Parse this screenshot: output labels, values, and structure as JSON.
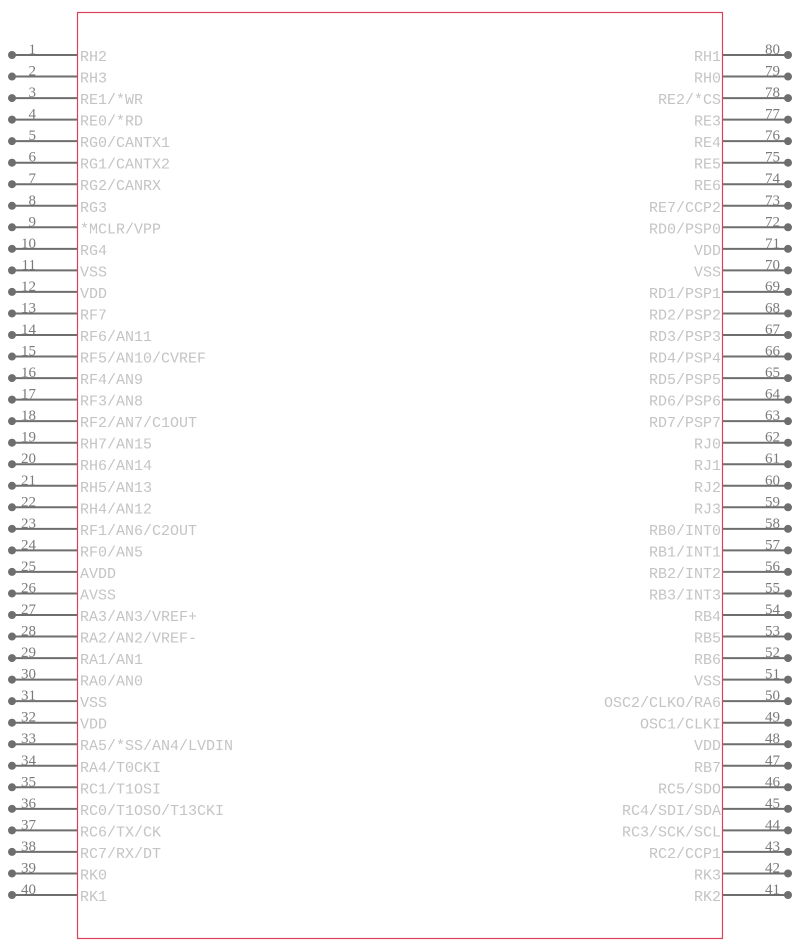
{
  "colors": {
    "body_outline": "#d9415c",
    "pin": "#6e6e6e",
    "pin_label": "#c4c4c4",
    "pin_number": "#7a7a7a"
  },
  "left_pins": [
    {
      "num": "1",
      "name": "RH2"
    },
    {
      "num": "2",
      "name": "RH3"
    },
    {
      "num": "3",
      "name": "RE1/*WR"
    },
    {
      "num": "4",
      "name": "RE0/*RD"
    },
    {
      "num": "5",
      "name": "RG0/CANTX1"
    },
    {
      "num": "6",
      "name": "RG1/CANTX2"
    },
    {
      "num": "7",
      "name": "RG2/CANRX"
    },
    {
      "num": "8",
      "name": "RG3"
    },
    {
      "num": "9",
      "name": "*MCLR/VPP"
    },
    {
      "num": "10",
      "name": "RG4"
    },
    {
      "num": "11",
      "name": "VSS"
    },
    {
      "num": "12",
      "name": "VDD"
    },
    {
      "num": "13",
      "name": "RF7"
    },
    {
      "num": "14",
      "name": "RF6/AN11"
    },
    {
      "num": "15",
      "name": "RF5/AN10/CVREF"
    },
    {
      "num": "16",
      "name": "RF4/AN9"
    },
    {
      "num": "17",
      "name": "RF3/AN8"
    },
    {
      "num": "18",
      "name": "RF2/AN7/C1OUT"
    },
    {
      "num": "19",
      "name": "RH7/AN15"
    },
    {
      "num": "20",
      "name": "RH6/AN14"
    },
    {
      "num": "21",
      "name": "RH5/AN13"
    },
    {
      "num": "22",
      "name": "RH4/AN12"
    },
    {
      "num": "23",
      "name": "RF1/AN6/C2OUT"
    },
    {
      "num": "24",
      "name": "RF0/AN5"
    },
    {
      "num": "25",
      "name": "AVDD"
    },
    {
      "num": "26",
      "name": "AVSS"
    },
    {
      "num": "27",
      "name": "RA3/AN3/VREF+"
    },
    {
      "num": "28",
      "name": "RA2/AN2/VREF-"
    },
    {
      "num": "29",
      "name": "RA1/AN1"
    },
    {
      "num": "30",
      "name": "RA0/AN0"
    },
    {
      "num": "31",
      "name": "VSS"
    },
    {
      "num": "32",
      "name": "VDD"
    },
    {
      "num": "33",
      "name": "RA5/*SS/AN4/LVDIN"
    },
    {
      "num": "34",
      "name": "RA4/T0CKI"
    },
    {
      "num": "35",
      "name": "RC1/T1OSI"
    },
    {
      "num": "36",
      "name": "RC0/T1OSO/T13CKI"
    },
    {
      "num": "37",
      "name": "RC6/TX/CK"
    },
    {
      "num": "38",
      "name": "RC7/RX/DT"
    },
    {
      "num": "39",
      "name": "RK0"
    },
    {
      "num": "40",
      "name": "RK1"
    }
  ],
  "right_pins": [
    {
      "num": "80",
      "name": "RH1"
    },
    {
      "num": "79",
      "name": "RH0"
    },
    {
      "num": "78",
      "name": "RE2/*CS"
    },
    {
      "num": "77",
      "name": "RE3"
    },
    {
      "num": "76",
      "name": "RE4"
    },
    {
      "num": "75",
      "name": "RE5"
    },
    {
      "num": "74",
      "name": "RE6"
    },
    {
      "num": "73",
      "name": "RE7/CCP2"
    },
    {
      "num": "72",
      "name": "RD0/PSP0"
    },
    {
      "num": "71",
      "name": "VDD"
    },
    {
      "num": "70",
      "name": "VSS"
    },
    {
      "num": "69",
      "name": "RD1/PSP1"
    },
    {
      "num": "68",
      "name": "RD2/PSP2"
    },
    {
      "num": "67",
      "name": "RD3/PSP3"
    },
    {
      "num": "66",
      "name": "RD4/PSP4"
    },
    {
      "num": "65",
      "name": "RD5/PSP5"
    },
    {
      "num": "64",
      "name": "RD6/PSP6"
    },
    {
      "num": "63",
      "name": "RD7/PSP7"
    },
    {
      "num": "62",
      "name": "RJ0"
    },
    {
      "num": "61",
      "name": "RJ1"
    },
    {
      "num": "60",
      "name": "RJ2"
    },
    {
      "num": "59",
      "name": "RJ3"
    },
    {
      "num": "58",
      "name": "RB0/INT0"
    },
    {
      "num": "57",
      "name": "RB1/INT1"
    },
    {
      "num": "56",
      "name": "RB2/INT2"
    },
    {
      "num": "55",
      "name": "RB3/INT3"
    },
    {
      "num": "54",
      "name": "RB4"
    },
    {
      "num": "53",
      "name": "RB5"
    },
    {
      "num": "52",
      "name": "RB6"
    },
    {
      "num": "51",
      "name": "VSS"
    },
    {
      "num": "50",
      "name": "OSC2/CLKO/RA6"
    },
    {
      "num": "49",
      "name": "OSC1/CLKI"
    },
    {
      "num": "48",
      "name": "VDD"
    },
    {
      "num": "47",
      "name": "RB7"
    },
    {
      "num": "46",
      "name": "RC5/SDO"
    },
    {
      "num": "45",
      "name": "RC4/SDI/SDA"
    },
    {
      "num": "44",
      "name": "RC3/SCK/SCL"
    },
    {
      "num": "43",
      "name": "RC2/CCP1"
    },
    {
      "num": "42",
      "name": "RK3"
    },
    {
      "num": "41",
      "name": "RK2"
    }
  ]
}
